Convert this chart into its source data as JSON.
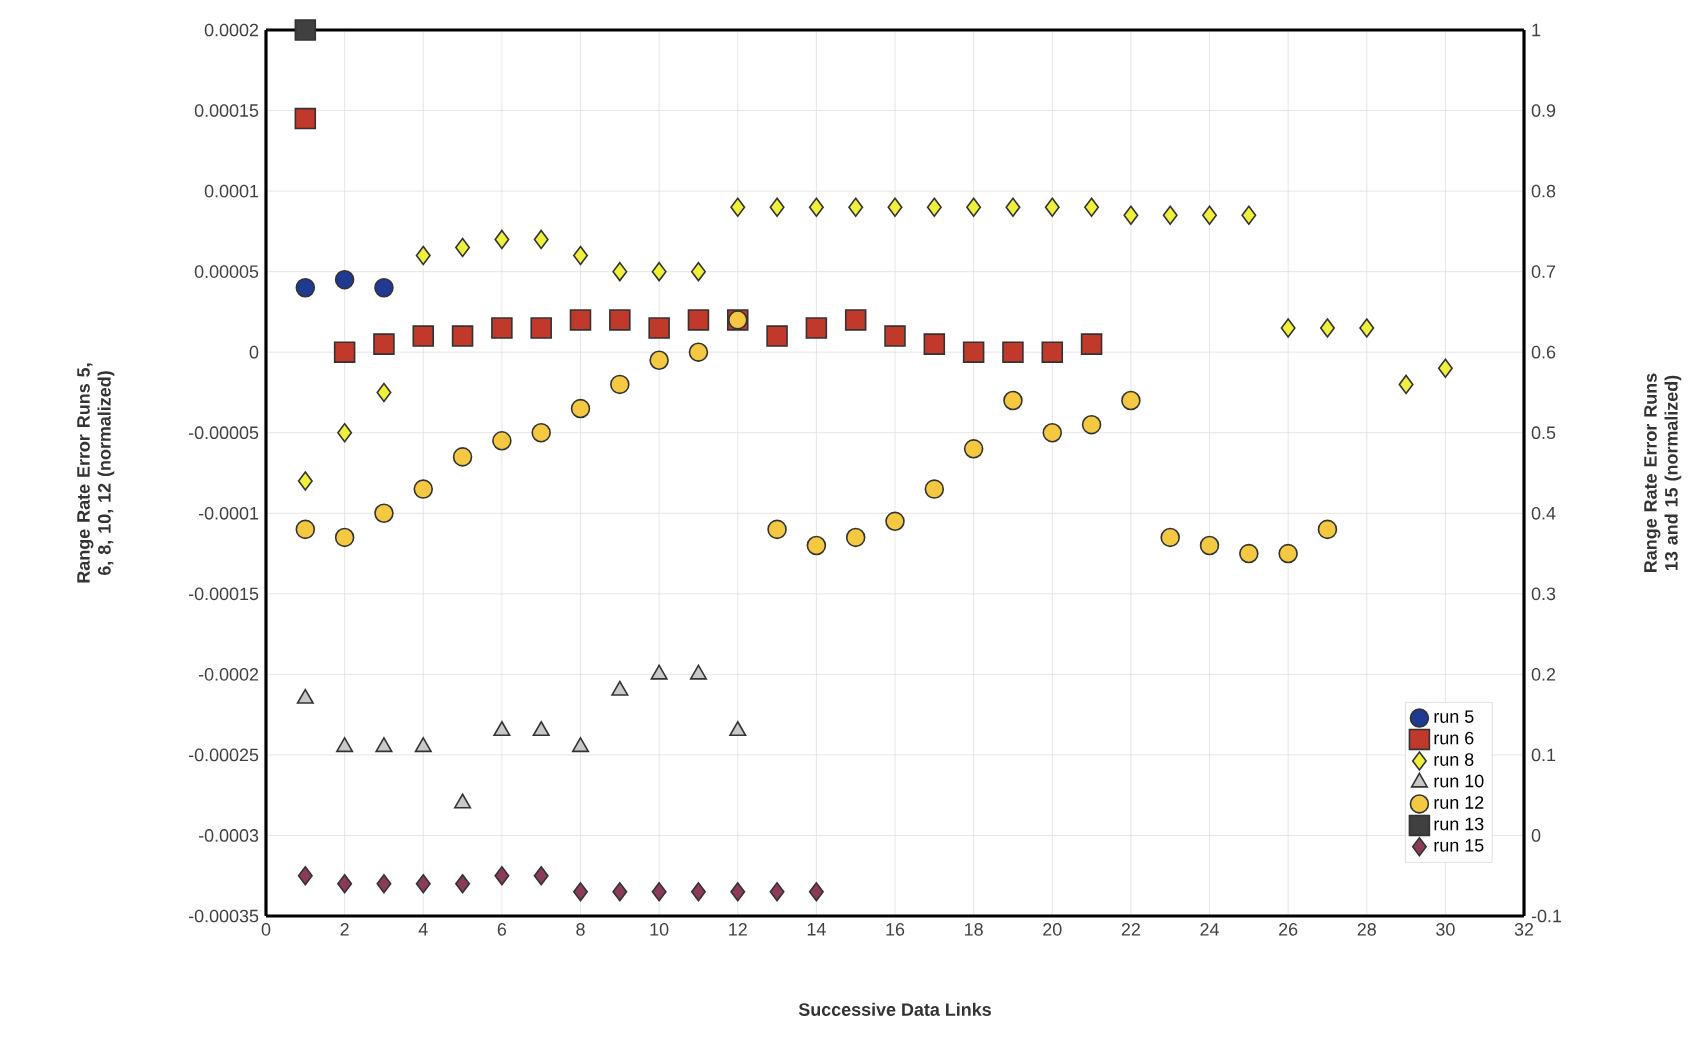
{
  "chart_data": {
    "type": "scatter",
    "xlabel": "Successive Data Links",
    "ylabel": "Range Rate Error Runs 5, 6, 8, 10, 12 (normalized)",
    "y2label": "Range Rate Error Runs 13 and 15 (normalized)",
    "xlim": [
      0,
      32
    ],
    "xticks": [
      0,
      2,
      4,
      6,
      8,
      10,
      12,
      14,
      16,
      18,
      20,
      22,
      24,
      26,
      28,
      30,
      32
    ],
    "ylim": [
      -0.00035,
      0.0002
    ],
    "yticks": [
      {
        "value": -0.00035,
        "label": "-0.00035"
      },
      {
        "value": -0.0003,
        "label": "-0.0003"
      },
      {
        "value": -0.00025,
        "label": "-0.00025"
      },
      {
        "value": -0.0002,
        "label": "-0.0002"
      },
      {
        "value": -0.00015,
        "label": "-0.00015"
      },
      {
        "value": -0.0001,
        "label": "-0.0001"
      },
      {
        "value": -5e-05,
        "label": "-0.00005"
      },
      {
        "value": 0,
        "label": "0"
      },
      {
        "value": 5e-05,
        "label": "0.00005"
      },
      {
        "value": 0.0001,
        "label": "0.0001"
      },
      {
        "value": 0.00015,
        "label": "0.00015"
      },
      {
        "value": 0.0002,
        "label": "0.0002"
      }
    ],
    "y2lim": [
      -0.1,
      1
    ],
    "y2ticks": [
      -0.1,
      0,
      0.1,
      0.2,
      0.3,
      0.4,
      0.5,
      0.6,
      0.7,
      0.8,
      0.9,
      1
    ],
    "grid": true,
    "legend": "bottom right",
    "series": [
      {
        "name": "run 5",
        "color": "#1f3a93",
        "marker": "circle",
        "x": [
          1,
          2,
          3
        ],
        "values": [
          4e-05,
          4.5e-05,
          4e-05
        ]
      },
      {
        "name": "run 6",
        "color": "#c0392b",
        "marker": "square",
        "x": [
          1,
          2,
          3,
          4,
          5,
          6,
          7,
          8,
          9,
          10,
          11,
          12,
          13,
          14,
          15,
          16,
          17,
          18,
          19,
          20,
          21
        ],
        "values": [
          0.000145,
          0,
          5e-06,
          1e-05,
          1e-05,
          1.5e-05,
          1.5e-05,
          2e-05,
          2e-05,
          1.5e-05,
          2e-05,
          2e-05,
          1e-05,
          1.5e-05,
          2e-05,
          1e-05,
          5e-06,
          0,
          0,
          0,
          5e-06
        ]
      },
      {
        "name": "run 8",
        "color": "#eef03c",
        "marker": "diamond",
        "x": [
          1,
          2,
          3,
          4,
          5,
          6,
          7,
          8,
          9,
          10,
          11,
          12,
          13,
          14,
          15,
          16,
          17,
          18,
          19,
          20,
          21,
          22,
          23,
          24,
          25,
          26,
          27,
          28,
          29,
          30
        ],
        "values": [
          -8e-05,
          -5e-05,
          -2.5e-05,
          6e-05,
          6.5e-05,
          7e-05,
          7e-05,
          6e-05,
          5e-05,
          5e-05,
          5e-05,
          9e-05,
          9e-05,
          9e-05,
          9e-05,
          9e-05,
          9e-05,
          9e-05,
          9e-05,
          9e-05,
          9e-05,
          8.5e-05,
          8.5e-05,
          8.5e-05,
          8.5e-05,
          1.5e-05,
          1.5e-05,
          1.5e-05,
          -2e-05,
          -1e-05
        ]
      },
      {
        "name": "run 10",
        "color": "#c8c8c8",
        "marker": "triangle",
        "x": [
          1,
          2,
          3,
          4,
          5,
          6,
          7,
          8,
          9,
          10,
          11,
          12
        ],
        "values": [
          -0.000215,
          -0.000245,
          -0.000245,
          -0.000245,
          -0.00028,
          -0.000235,
          -0.000235,
          -0.000245,
          -0.00021,
          -0.0002,
          -0.0002,
          -0.000235
        ]
      },
      {
        "name": "run 12",
        "color": "#f5c842",
        "marker": "circle",
        "x": [
          1,
          2,
          3,
          4,
          5,
          6,
          7,
          8,
          9,
          10,
          11,
          12,
          13,
          14,
          15,
          16,
          17,
          18,
          19,
          20,
          21,
          22,
          23,
          24,
          25,
          26,
          27
        ],
        "values": [
          -0.00011,
          -0.000115,
          -0.0001,
          -8.5e-05,
          -6.5e-05,
          -5.5e-05,
          -5e-05,
          -3.5e-05,
          -2e-05,
          -5e-06,
          0,
          2e-05,
          -0.00011,
          -0.00012,
          -0.000115,
          -0.000105,
          -8.5e-05,
          -6e-05,
          -3e-05,
          -5e-05,
          -4.5e-05,
          -3e-05,
          -0.000115,
          -0.00012,
          -0.000125,
          -0.000125,
          -0.00011
        ]
      },
      {
        "name": "run 13",
        "color": "#404040",
        "marker": "square",
        "axis": "y2",
        "x": [
          1
        ],
        "values": [
          1
        ]
      },
      {
        "name": "run 15",
        "color": "#8b3a5a",
        "marker": "diamond",
        "axis": "y2",
        "x": [
          1,
          2,
          3,
          4,
          5,
          6,
          7,
          8,
          9,
          10,
          11,
          12,
          13,
          14
        ],
        "values": [
          -0.05,
          -0.06,
          -0.06,
          -0.06,
          -0.06,
          -0.05,
          -0.05,
          -0.07,
          -0.07,
          -0.07,
          -0.07,
          -0.07,
          -0.07,
          -0.07
        ]
      }
    ]
  }
}
